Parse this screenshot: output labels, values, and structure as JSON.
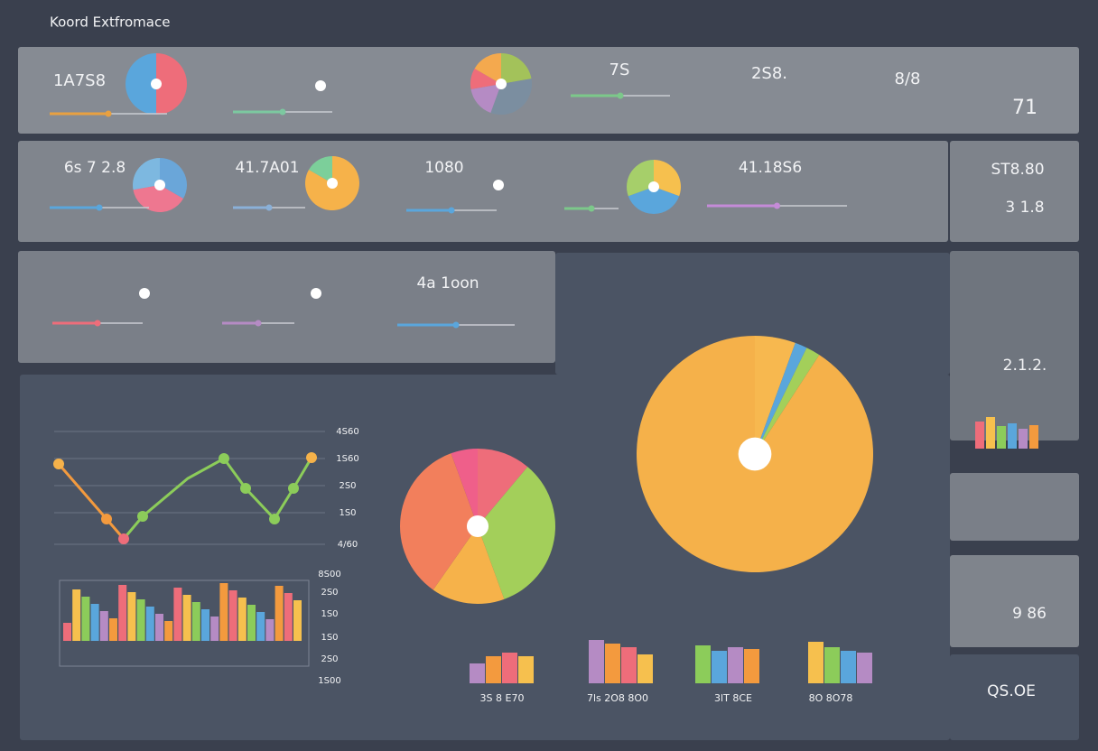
{
  "header": {
    "title": "Koord Extfromace"
  },
  "top": [
    "1A7S8",
    "7S",
    "2S8.",
    "8/8",
    "71"
  ],
  "middle": [
    "6s 7 2.8",
    "41.7A01",
    "1080",
    "41.18S6",
    "ST8.80",
    "3 1.8"
  ],
  "lower": [
    "4a 1oon"
  ],
  "side": [
    "2.1.2.",
    "9 86",
    "QS.OE"
  ],
  "line_axis": [
    "4S60",
    "1S60",
    "2S0",
    "1S0",
    "4/60"
  ],
  "bar_axis": [
    "8S00",
    "2S0",
    "1S0",
    "1S0",
    "2S0",
    "1S00"
  ],
  "bar_labels": [
    "3S 8 E70",
    "7ls 2O8 8O0",
    "3lT 8CE",
    "8O 8O78"
  ]
}
